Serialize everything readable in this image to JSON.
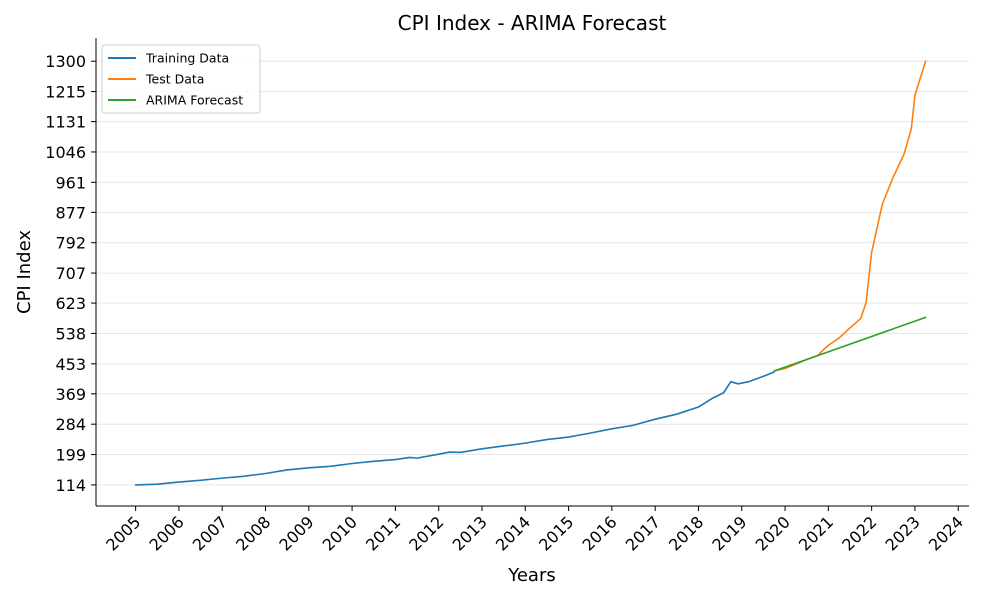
{
  "chart_data": {
    "type": "line",
    "title": "CPI Index - ARIMA Forecast",
    "xlabel": "Years",
    "ylabel": "CPI Index",
    "x_ticks": [
      "2005",
      "2006",
      "2007",
      "2008",
      "2009",
      "2010",
      "2011",
      "2012",
      "2013",
      "2014",
      "2015",
      "2016",
      "2017",
      "2018",
      "2019",
      "2020",
      "2021",
      "2022",
      "2023",
      "2024"
    ],
    "y_ticks": [
      "114",
      "199",
      "284",
      "369",
      "453",
      "538",
      "623",
      "707",
      "792",
      "877",
      "961",
      "1046",
      "1131",
      "1215",
      "1300"
    ],
    "xlim": [
      "2004-02-01",
      "2024-04-01"
    ],
    "ylim": [
      55,
      1365
    ],
    "grid": "horizontal",
    "legend_position": "top-left",
    "series": [
      {
        "name": "Training Data",
        "color": "#1f77b4",
        "points": [
          [
            "2005-01-01",
            114
          ],
          [
            "2005-07-01",
            116
          ],
          [
            "2006-01-01",
            122
          ],
          [
            "2006-07-01",
            127
          ],
          [
            "2007-01-01",
            133
          ],
          [
            "2007-07-01",
            138
          ],
          [
            "2008-01-01",
            146
          ],
          [
            "2008-07-01",
            156
          ],
          [
            "2009-01-01",
            162
          ],
          [
            "2009-07-01",
            166
          ],
          [
            "2010-01-01",
            174
          ],
          [
            "2010-07-01",
            180
          ],
          [
            "2011-01-01",
            185
          ],
          [
            "2011-05-01",
            191
          ],
          [
            "2011-07-01",
            189
          ],
          [
            "2012-01-01",
            200
          ],
          [
            "2012-04-01",
            206
          ],
          [
            "2012-07-01",
            205
          ],
          [
            "2013-01-01",
            215
          ],
          [
            "2013-07-01",
            223
          ],
          [
            "2014-01-01",
            231
          ],
          [
            "2014-07-01",
            241
          ],
          [
            "2015-01-01",
            248
          ],
          [
            "2015-07-01",
            259
          ],
          [
            "2016-01-01",
            271
          ],
          [
            "2016-07-01",
            281
          ],
          [
            "2017-01-01",
            298
          ],
          [
            "2017-07-01",
            312
          ],
          [
            "2018-01-01",
            332
          ],
          [
            "2018-05-01",
            357
          ],
          [
            "2018-08-01",
            372
          ],
          [
            "2018-10-01",
            403
          ],
          [
            "2018-12-01",
            397
          ],
          [
            "2019-03-01",
            403
          ],
          [
            "2019-07-01",
            418
          ],
          [
            "2019-10-01",
            430
          ]
        ]
      },
      {
        "name": "Test Data",
        "color": "#ff7f0e",
        "points": [
          [
            "2019-10-01",
            433
          ],
          [
            "2020-01-01",
            440
          ],
          [
            "2020-04-01",
            452
          ],
          [
            "2020-07-01",
            465
          ],
          [
            "2020-10-01",
            476
          ],
          [
            "2021-01-01",
            505
          ],
          [
            "2021-04-01",
            525
          ],
          [
            "2021-07-01",
            553
          ],
          [
            "2021-10-01",
            580
          ],
          [
            "2021-11-15",
            625
          ],
          [
            "2022-01-01",
            765
          ],
          [
            "2022-04-01",
            900
          ],
          [
            "2022-07-01",
            975
          ],
          [
            "2022-10-01",
            1040
          ],
          [
            "2022-12-01",
            1110
          ],
          [
            "2023-01-01",
            1205
          ],
          [
            "2023-04-01",
            1300
          ]
        ]
      },
      {
        "name": "ARIMA Forecast",
        "color": "#2ca02c",
        "points": [
          [
            "2019-10-01",
            433
          ],
          [
            "2023-04-01",
            583
          ]
        ]
      }
    ]
  }
}
